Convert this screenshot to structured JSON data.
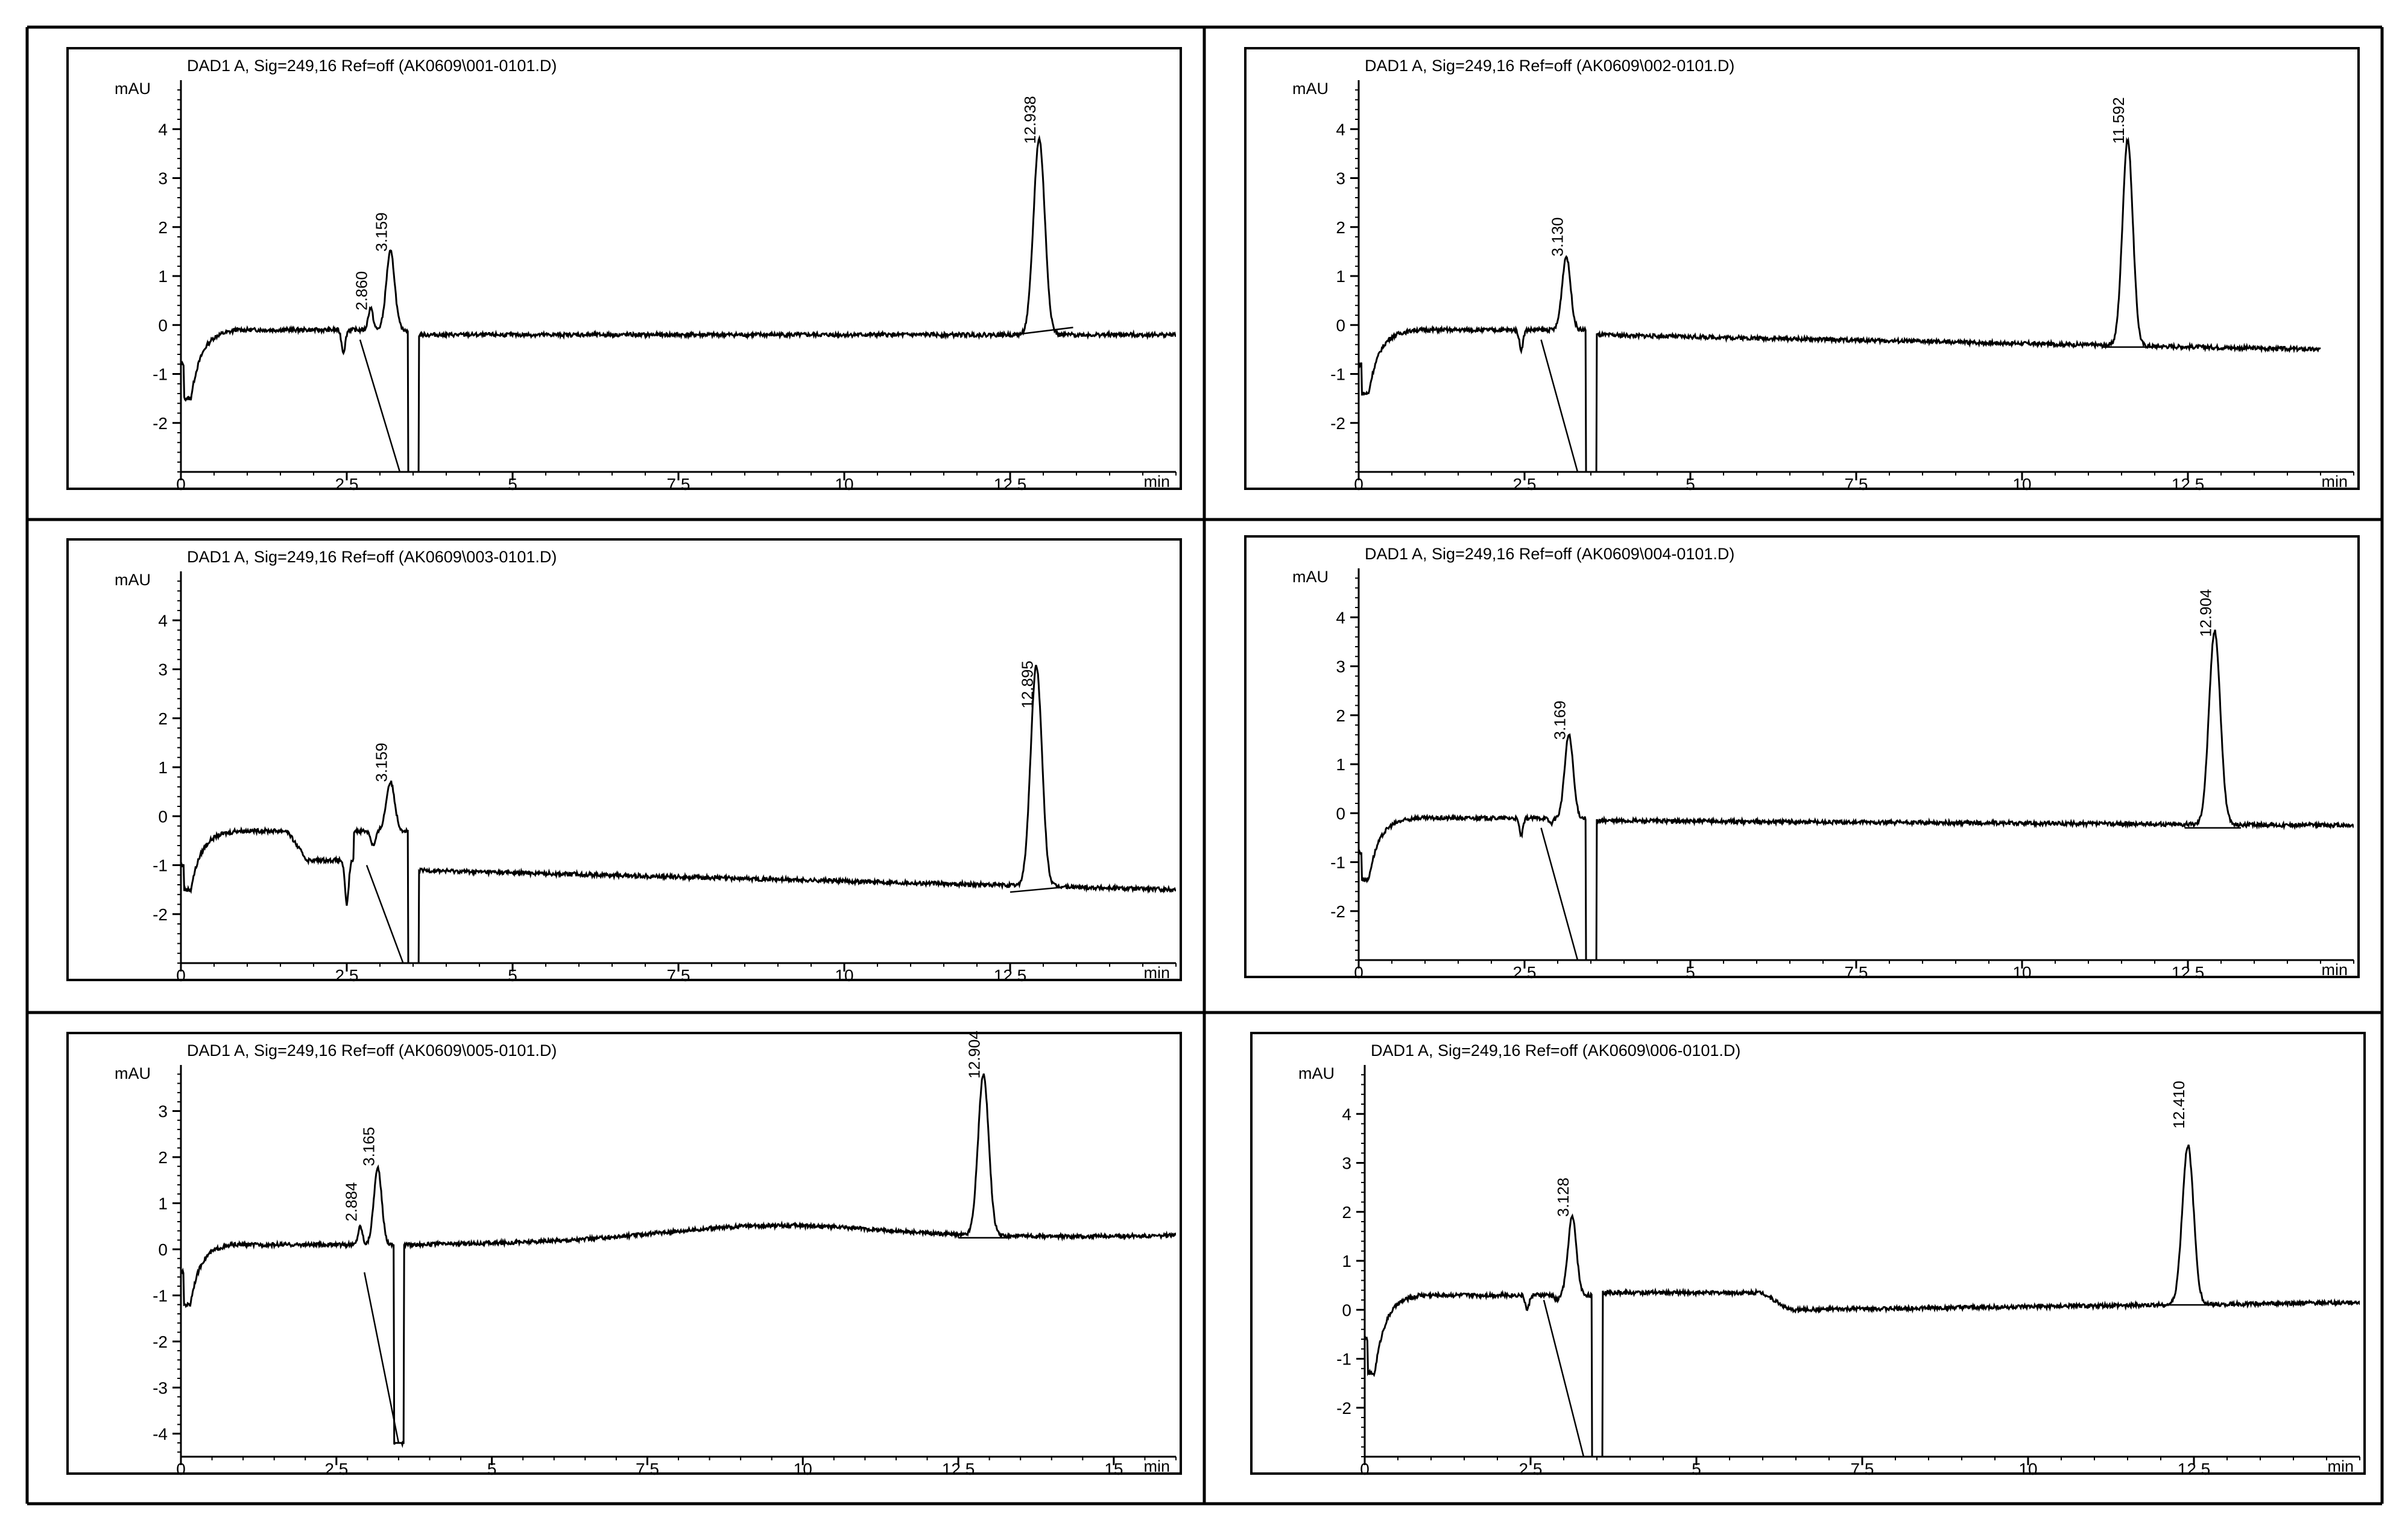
{
  "chart_data": [
    {
      "type": "line",
      "title": "DAD1 A, Sig=249,16 Ref=off (AK0609\\001-0101.D)",
      "ylabel": "mAU",
      "xlabel": "min",
      "xlim": [
        0,
        15
      ],
      "ylim": [
        -3,
        5
      ],
      "xticks": [
        "0",
        "2.5",
        "5",
        "7.5",
        "10",
        "12.5"
      ],
      "yticks": [
        "4",
        "3",
        "2",
        "1",
        "0",
        "-1",
        "-2"
      ],
      "peak_labels": [
        {
          "label": "2.860",
          "x": 2.86,
          "y": 0.2
        },
        {
          "label": "3.159",
          "x": 3.159,
          "y": 1.4
        },
        {
          "label": "12.938",
          "x": 12.938,
          "y": 3.6
        }
      ],
      "trace": {
        "start": -0.8,
        "dip": -1.5,
        "base": -0.1,
        "baseEnd": -0.2,
        "neg": [
          [
            2.45,
            -0.55,
            0.04
          ]
        ],
        "peaks": [
          [
            2.86,
            0.35,
            0.05
          ],
          [
            3.159,
            1.5,
            0.09
          ],
          [
            12.938,
            3.8,
            0.12
          ]
        ],
        "drop": 3.5,
        "recoverTo": -0.2,
        "baselines": [
          [
            12.55,
            -0.2,
            13.45,
            -0.05
          ]
        ],
        "diag": [
          [
            2.7,
            -0.3,
            3.3,
            -3.0
          ]
        ],
        "end": 15
      }
    },
    {
      "type": "line",
      "title": "DAD1 A, Sig=249,16 Ref=off (AK0609\\002-0101.D)",
      "ylabel": "mAU",
      "xlabel": "min",
      "xlim": [
        0,
        15
      ],
      "ylim": [
        -3,
        5
      ],
      "xticks": [
        "0",
        "2.5",
        "5",
        "7.5",
        "10",
        "12.5"
      ],
      "yticks": [
        "4",
        "3",
        "2",
        "1",
        "0",
        "-1",
        "-2"
      ],
      "peak_labels": [
        {
          "label": "3.130",
          "x": 3.13,
          "y": 1.3
        },
        {
          "label": "11.592",
          "x": 11.592,
          "y": 3.6
        }
      ],
      "trace": {
        "start": -0.8,
        "dip": -1.4,
        "base": -0.1,
        "baseEnd": -0.5,
        "neg": [
          [
            2.45,
            -0.5,
            0.04
          ]
        ],
        "peaks": [
          [
            3.13,
            1.4,
            0.09
          ],
          [
            11.592,
            4.0,
            0.11
          ]
        ],
        "drop": 3.5,
        "recoverTo": -0.2,
        "baselines": [
          [
            11.2,
            -0.45,
            12.1,
            -0.45
          ]
        ],
        "diag": [
          [
            2.75,
            -0.3,
            3.3,
            -3.0
          ]
        ],
        "end": 14.5
      }
    },
    {
      "type": "line",
      "title": "DAD1 A, Sig=249,16 Ref=off (AK0609\\003-0101.D)",
      "ylabel": "mAU",
      "xlabel": "min",
      "xlim": [
        0,
        15
      ],
      "ylim": [
        -3,
        5
      ],
      "xticks": [
        "0",
        "2.5",
        "5",
        "7.5",
        "10",
        "12.5"
      ],
      "yticks": [
        "4",
        "3",
        "2",
        "1",
        "0",
        "-1",
        "-2"
      ],
      "peak_labels": [
        {
          "label": "3.159",
          "x": 3.159,
          "y": 0.6
        },
        {
          "label": "12.895",
          "x": 12.895,
          "y": 2.1
        }
      ],
      "trace": {
        "start": -1.0,
        "dip": -1.5,
        "base": -0.3,
        "baseEnd": -1.5,
        "neg": [
          [
            2.5,
            -1.2,
            0.04
          ]
        ],
        "peaks": [
          [
            2.9,
            -0.6,
            0.05
          ],
          [
            3.159,
            0.7,
            0.09
          ],
          [
            12.895,
            3.4,
            0.12
          ]
        ],
        "drop": 3.5,
        "recoverTo": -1.1,
        "step": [
          1.6,
          1.9,
          -0.9
        ],
        "baselines": [
          [
            12.5,
            -1.55,
            13.3,
            -1.45
          ]
        ],
        "diag": [
          [
            2.8,
            -1.0,
            3.35,
            -3.0
          ]
        ],
        "end": 15
      }
    },
    {
      "type": "line",
      "title": "DAD1 A, Sig=249,16 Ref=off (AK0609\\004-0101.D)",
      "ylabel": "mAU",
      "xlabel": "min",
      "xlim": [
        0,
        15
      ],
      "ylim": [
        -3,
        5
      ],
      "xticks": [
        "0",
        "2.5",
        "5",
        "7.5",
        "10",
        "12.5"
      ],
      "yticks": [
        "4",
        "3",
        "2",
        "1",
        "0",
        "-1",
        "-2"
      ],
      "peak_labels": [
        {
          "label": "3.169",
          "x": 3.169,
          "y": 1.4
        },
        {
          "label": "12.904",
          "x": 12.904,
          "y": 3.5
        }
      ],
      "trace": {
        "start": -0.8,
        "dip": -1.35,
        "base": -0.1,
        "baseEnd": -0.25,
        "neg": [
          [
            2.45,
            -0.45,
            0.04
          ]
        ],
        "peaks": [
          [
            2.9,
            -0.2,
            0.05
          ],
          [
            3.169,
            1.6,
            0.09
          ],
          [
            12.904,
            3.8,
            0.12
          ]
        ],
        "drop": 3.5,
        "recoverTo": -0.15,
        "baselines": [
          [
            12.45,
            -0.3,
            13.3,
            -0.3
          ]
        ],
        "diag": [
          [
            2.75,
            -0.3,
            3.3,
            -3.0
          ]
        ],
        "end": 15
      }
    },
    {
      "type": "line",
      "title": "DAD1 A, Sig=249,16 Ref=off (AK0609\\005-0101.D)",
      "ylabel": "mAU",
      "xlabel": "min",
      "xlim": [
        0,
        16
      ],
      "ylim": [
        -4.5,
        4
      ],
      "xticks": [
        "0",
        "2.5",
        "5",
        "7.5",
        "10",
        "12.5",
        "15"
      ],
      "yticks": [
        "3",
        "2",
        "1",
        "0",
        "-1",
        "-2",
        "-3",
        "-4"
      ],
      "peak_labels": [
        {
          "label": "2.884",
          "x": 2.884,
          "y": 0.5
        },
        {
          "label": "3.165",
          "x": 3.165,
          "y": 1.7
        },
        {
          "label": "12.904",
          "x": 12.904,
          "y": 3.6
        }
      ],
      "trace": {
        "start": -0.5,
        "dip": -1.2,
        "base": 0.1,
        "baseEnd": 0.3,
        "neg": [],
        "peaks": [
          [
            2.884,
            0.5,
            0.05
          ],
          [
            3.165,
            1.75,
            0.09
          ],
          [
            12.904,
            3.6,
            0.12
          ]
        ],
        "drop": 3.5,
        "dropTo": -4.2,
        "recoverTo": 0.1,
        "hump": [
          9.5,
          0.5,
          2.5
        ],
        "baselines": [
          [
            12.5,
            0.25,
            13.35,
            0.25
          ]
        ],
        "diag": [
          [
            2.95,
            -0.5,
            3.5,
            -4.2
          ]
        ],
        "end": 16
      }
    },
    {
      "type": "line",
      "title": "DAD1 A, Sig=249,16 Ref=off (AK0609\\006-0101.D)",
      "ylabel": "mAU",
      "xlabel": "min",
      "xlim": [
        0,
        15
      ],
      "ylim": [
        -3,
        5
      ],
      "xticks": [
        "0",
        "2.5",
        "5",
        "7.5",
        "10",
        "12.5"
      ],
      "yticks": [
        "4",
        "3",
        "2",
        "1",
        "0",
        "-1",
        "-2"
      ],
      "peak_labels": [
        {
          "label": "3.128",
          "x": 3.128,
          "y": 1.8
        },
        {
          "label": "12.410",
          "x": 12.41,
          "y": 3.6
        }
      ],
      "trace": {
        "start": -0.6,
        "dip": -1.3,
        "base": 0.3,
        "baseEnd": 0.15,
        "neg": [
          [
            2.45,
            0.0,
            0.04
          ]
        ],
        "peaks": [
          [
            2.9,
            0.2,
            0.05
          ],
          [
            3.128,
            1.9,
            0.09
          ],
          [
            12.41,
            3.6,
            0.12
          ]
        ],
        "drop": 3.5,
        "recoverTo": 0.35,
        "plateau": [
          6.0,
          0.35,
          6.4,
          0.0
        ],
        "baselines": [
          [
            11.95,
            0.1,
            12.85,
            0.1
          ]
        ],
        "diag": [
          [
            2.7,
            0.2,
            3.3,
            -3.0
          ]
        ],
        "end": 15
      }
    }
  ]
}
